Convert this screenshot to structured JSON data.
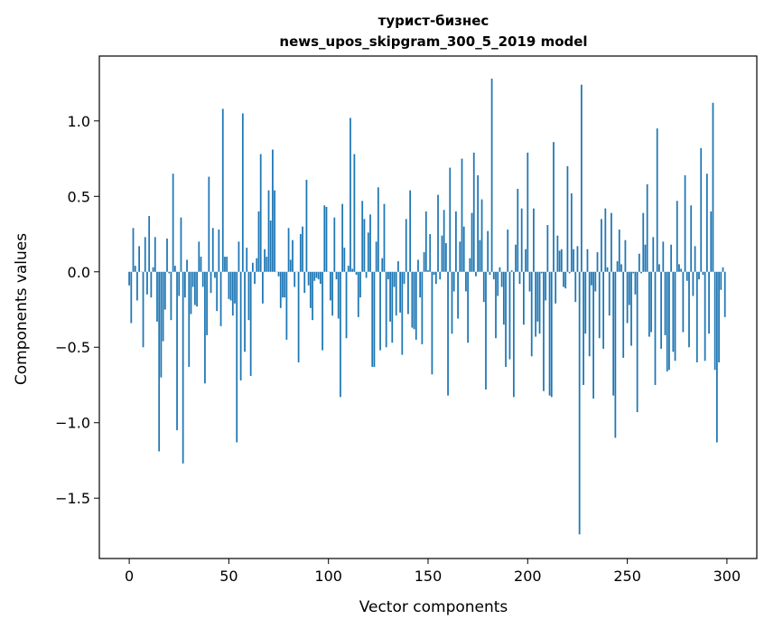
{
  "chart_data": {
    "type": "bar",
    "title_lines": [
      "турист-бизнес",
      "news_upos_skipgram_300_5_2019 model"
    ],
    "xlabel": "Vector components",
    "ylabel": "Components values",
    "xlim": [
      -15,
      315
    ],
    "ylim": [
      -1.9,
      1.43
    ],
    "x_ticks": [
      0,
      50,
      100,
      150,
      200,
      250,
      300
    ],
    "y_ticks": [
      -1.5,
      -1.0,
      -0.5,
      0.0,
      0.5,
      1.0
    ],
    "x_tick_labels": [
      "0",
      "50",
      "100",
      "150",
      "200",
      "250",
      "300"
    ],
    "y_tick_labels": [
      "−1.5",
      "−1.0",
      "−0.5",
      "0.0",
      "0.5",
      "1.0"
    ],
    "grid": false,
    "bar_color": "#1f77b4",
    "values": [
      -0.09,
      -0.34,
      0.29,
      0.04,
      -0.19,
      0.17,
      0.0,
      -0.5,
      0.23,
      -0.15,
      0.37,
      -0.17,
      0.03,
      0.23,
      -0.33,
      -1.19,
      -0.7,
      -0.46,
      -0.25,
      0.22,
      -0.01,
      -0.32,
      0.65,
      0.04,
      -1.05,
      -0.16,
      0.36,
      -1.27,
      -0.17,
      0.08,
      -0.63,
      -0.28,
      -0.1,
      -0.22,
      -0.23,
      0.2,
      0.1,
      -0.1,
      -0.74,
      -0.42,
      0.63,
      -0.14,
      0.29,
      -0.04,
      -0.26,
      0.28,
      -0.36,
      1.08,
      0.1,
      0.1,
      -0.18,
      -0.19,
      -0.29,
      -0.21,
      -1.13,
      0.2,
      -0.72,
      1.05,
      -0.53,
      0.16,
      -0.32,
      -0.69,
      0.06,
      -0.08,
      0.09,
      0.4,
      0.78,
      -0.21,
      0.15,
      0.1,
      0.54,
      0.34,
      0.81,
      0.54,
      0.0,
      -0.03,
      -0.24,
      -0.17,
      -0.17,
      -0.45,
      0.29,
      0.08,
      0.21,
      -0.1,
      0.0,
      -0.6,
      0.25,
      0.3,
      -0.14,
      0.61,
      -0.09,
      -0.24,
      -0.32,
      -0.06,
      -0.04,
      -0.05,
      -0.08,
      -0.52,
      0.44,
      0.43,
      0.0,
      -0.19,
      -0.29,
      0.36,
      -0.05,
      -0.31,
      -0.83,
      0.45,
      0.16,
      -0.44,
      0.04,
      1.02,
      0.02,
      0.78,
      -0.02,
      -0.3,
      -0.17,
      0.47,
      0.35,
      -0.04,
      0.26,
      0.38,
      -0.63,
      -0.63,
      0.2,
      0.56,
      -0.52,
      0.09,
      0.45,
      -0.5,
      -0.05,
      -0.33,
      -0.47,
      -0.1,
      -0.29,
      0.07,
      -0.27,
      -0.55,
      -0.08,
      0.35,
      -0.28,
      0.54,
      -0.37,
      -0.38,
      -0.45,
      0.08,
      -0.17,
      -0.48,
      0.13,
      0.4,
      0.01,
      0.25,
      -0.68,
      -0.02,
      -0.08,
      0.51,
      -0.05,
      0.24,
      0.41,
      0.19,
      -0.82,
      0.69,
      -0.41,
      -0.13,
      0.4,
      -0.31,
      0.2,
      0.75,
      0.3,
      -0.13,
      -0.47,
      0.09,
      0.39,
      0.79,
      -0.03,
      0.64,
      0.21,
      0.48,
      -0.2,
      -0.78,
      0.27,
      -0.02,
      1.28,
      -0.05,
      -0.44,
      -0.16,
      0.03,
      -0.1,
      -0.35,
      -0.63,
      0.28,
      -0.58,
      0.01,
      -0.83,
      0.18,
      0.55,
      -0.08,
      0.42,
      -0.35,
      0.15,
      0.79,
      -0.13,
      -0.56,
      0.42,
      -0.43,
      -0.33,
      -0.41,
      -0.01,
      -0.79,
      -0.19,
      0.31,
      -0.82,
      -0.83,
      0.86,
      -0.21,
      0.24,
      0.14,
      0.15,
      -0.1,
      -0.11,
      0.7,
      -0.01,
      0.52,
      0.15,
      -0.2,
      0.17,
      -1.74,
      1.24,
      -0.75,
      -0.41,
      0.15,
      -0.56,
      -0.09,
      -0.84,
      -0.13,
      0.13,
      -0.44,
      0.35,
      -0.51,
      0.42,
      0.03,
      -0.29,
      0.39,
      -0.82,
      -1.1,
      0.07,
      0.28,
      0.05,
      -0.57,
      0.21,
      -0.34,
      -0.22,
      -0.49,
      -0.01,
      -0.15,
      -0.93,
      0.12,
      -0.01,
      0.39,
      0.18,
      0.58,
      -0.43,
      -0.4,
      0.23,
      -0.75,
      0.95,
      0.05,
      -0.51,
      0.2,
      -0.42,
      -0.66,
      -0.65,
      0.18,
      -0.53,
      -0.59,
      0.47,
      0.05,
      0.02,
      -0.4,
      0.64,
      -0.06,
      -0.5,
      0.44,
      -0.16,
      0.17,
      -0.6,
      -0.05,
      0.82,
      -0.02,
      -0.59,
      0.65,
      -0.41,
      0.4,
      1.12,
      -0.65,
      -1.13,
      -0.6,
      -0.12,
      0.03,
      -0.3
    ]
  }
}
